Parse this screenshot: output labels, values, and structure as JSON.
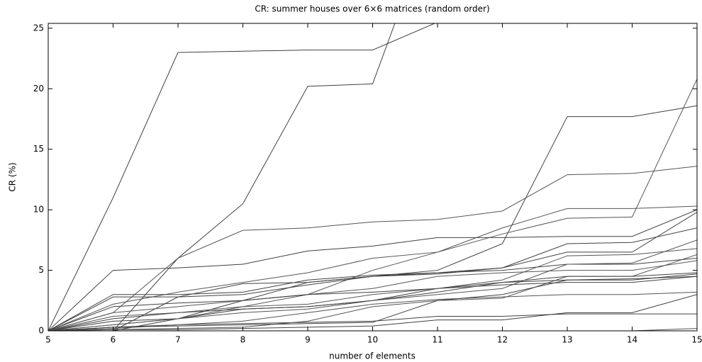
{
  "chart_data": {
    "type": "line",
    "title": "CR: summer houses over 6×6 matrices (random order)",
    "x_label": "number of elements",
    "y_label": "CR (%)",
    "x": [
      5,
      6,
      7,
      8,
      9,
      10,
      11,
      12,
      13,
      14,
      15
    ],
    "xlim": [
      5,
      15
    ],
    "ylim": [
      0,
      25.4
    ],
    "xticks": [
      5,
      6,
      7,
      8,
      9,
      10,
      11,
      12,
      13,
      14,
      15
    ],
    "yticks": [
      0,
      5,
      10,
      15,
      20,
      25
    ],
    "grid": false,
    "series": [
      {
        "color": "#404040",
        "values": [
          0,
          11,
          23,
          23.1,
          23.2,
          23.2,
          25.5,
          null,
          null,
          null,
          null
        ]
      },
      {
        "color": "#404040",
        "values": [
          0,
          0,
          6,
          10.5,
          20.2,
          20.4,
          35,
          null,
          null,
          null,
          null
        ]
      },
      {
        "color": "#404040",
        "values": [
          0,
          0,
          1,
          2.5,
          4,
          4.5,
          5,
          7.2,
          17.7,
          17.7,
          18.6
        ]
      },
      {
        "color": "#404040",
        "values": [
          0,
          5,
          5.2,
          5.5,
          6.6,
          7,
          7.7,
          7.7,
          7.8,
          7.8,
          10
        ]
      },
      {
        "color": "#555555",
        "values": [
          0,
          1.5,
          6,
          8.3,
          8.5,
          9,
          9.2,
          9.9,
          12.9,
          13,
          13.6
        ]
      },
      {
        "color": "#555555",
        "values": [
          0,
          2.2,
          3.2,
          4,
          4.8,
          6,
          6.5,
          8,
          9.3,
          9.4,
          20.8
        ]
      },
      {
        "color": "#555555",
        "values": [
          0,
          0.5,
          1,
          2,
          3,
          5,
          6.5,
          8.5,
          10.1,
          10.1,
          10.3
        ]
      },
      {
        "color": "#404040",
        "values": [
          0,
          3,
          3,
          3.2,
          4.2,
          4.6,
          4.8,
          5.2,
          7.2,
          7.3,
          8.5
        ]
      },
      {
        "color": "#404040",
        "values": [
          0,
          0,
          2.8,
          3.9,
          4,
          4.5,
          4.8,
          5,
          5.5,
          5.5,
          6
        ]
      },
      {
        "color": "#404040",
        "values": [
          0,
          2.8,
          2.8,
          3,
          3.8,
          4.5,
          4.7,
          5.2,
          6.5,
          6.5,
          9.8
        ]
      },
      {
        "color": "#404040",
        "values": [
          0,
          0.3,
          0.5,
          0.6,
          0.7,
          0.8,
          1.2,
          1.2,
          1.4,
          1.4,
          1.4
        ]
      },
      {
        "color": "#555555",
        "values": [
          0,
          0,
          0,
          0,
          0,
          0,
          0,
          0,
          0,
          0,
          0.2
        ]
      },
      {
        "color": "#555555",
        "values": [
          0,
          0.1,
          0.2,
          0.3,
          0.8,
          2,
          2.5,
          2.7,
          4.5,
          4.5,
          6.3
        ]
      },
      {
        "color": "#404040",
        "values": [
          0,
          0.8,
          1,
          1.8,
          2,
          2.5,
          3.2,
          4,
          4.2,
          4.2,
          4.7
        ]
      },
      {
        "color": "#404040",
        "values": [
          0,
          0.1,
          0.1,
          0.2,
          0.3,
          0.4,
          0.9,
          0.9,
          1.5,
          1.5,
          3
        ]
      },
      {
        "color": "#555555",
        "values": [
          0,
          1.5,
          2,
          2.5,
          3,
          3.5,
          4.5,
          4.8,
          5,
          5,
          5.8
        ]
      },
      {
        "color": "#404040",
        "values": [
          0,
          1,
          1.5,
          1.8,
          2,
          2.5,
          3.5,
          4,
          4.5,
          4.5,
          4.8
        ]
      },
      {
        "color": "#555555",
        "values": [
          0,
          0.5,
          1,
          1.5,
          1.8,
          2.5,
          3,
          3.5,
          5.5,
          5.6,
          7.5
        ]
      },
      {
        "color": "#404040",
        "values": [
          0,
          2,
          2.3,
          2.5,
          3,
          3.2,
          3.5,
          3.8,
          4,
          4,
          4.5
        ]
      },
      {
        "color": "#555555",
        "values": [
          0,
          0.2,
          0.5,
          0.8,
          1.5,
          2.2,
          2.6,
          2.8,
          3,
          3,
          3.2
        ]
      },
      {
        "color": "#404040",
        "values": [
          0,
          0.3,
          0.4,
          0.5,
          0.6,
          0.7,
          2.5,
          3,
          4.2,
          4.3,
          4.5
        ]
      },
      {
        "color": "#555555",
        "values": [
          0,
          1.2,
          1.5,
          2,
          2.2,
          3,
          3.5,
          4.2,
          6.2,
          6.3,
          6.8
        ]
      }
    ]
  }
}
